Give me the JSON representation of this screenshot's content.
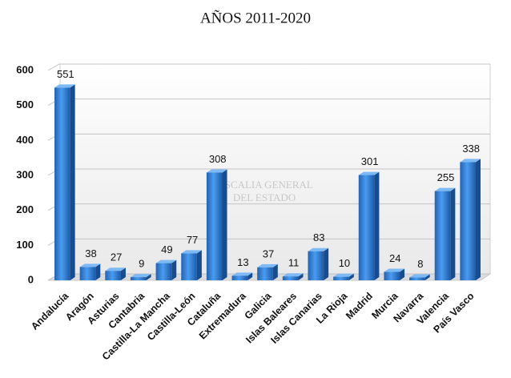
{
  "chart_data": {
    "type": "bar3d",
    "title": "AÑOS 2011-2020",
    "watermark": [
      "FISCALIA GENERAL",
      "DEL ESTADO"
    ],
    "categories": [
      "Andalucía",
      "Aragón",
      "Asturias",
      "Cantabria",
      "Castilla-La Mancha",
      "Castilla-León",
      "Cataluña",
      "Extremadura",
      "Galicia",
      "Islas Baleares",
      "Islas Canarias",
      "La Rioja",
      "Madrid",
      "Murcia",
      "Navarra",
      "Valencia",
      "País Vasco"
    ],
    "values": [
      551,
      38,
      27,
      9,
      49,
      77,
      308,
      13,
      37,
      11,
      83,
      10,
      301,
      24,
      8,
      255,
      338
    ],
    "color": "#2e7fd6",
    "ylim": [
      0,
      600
    ],
    "yticks": [
      0,
      100,
      200,
      300,
      400,
      500,
      600
    ],
    "grid": true
  }
}
